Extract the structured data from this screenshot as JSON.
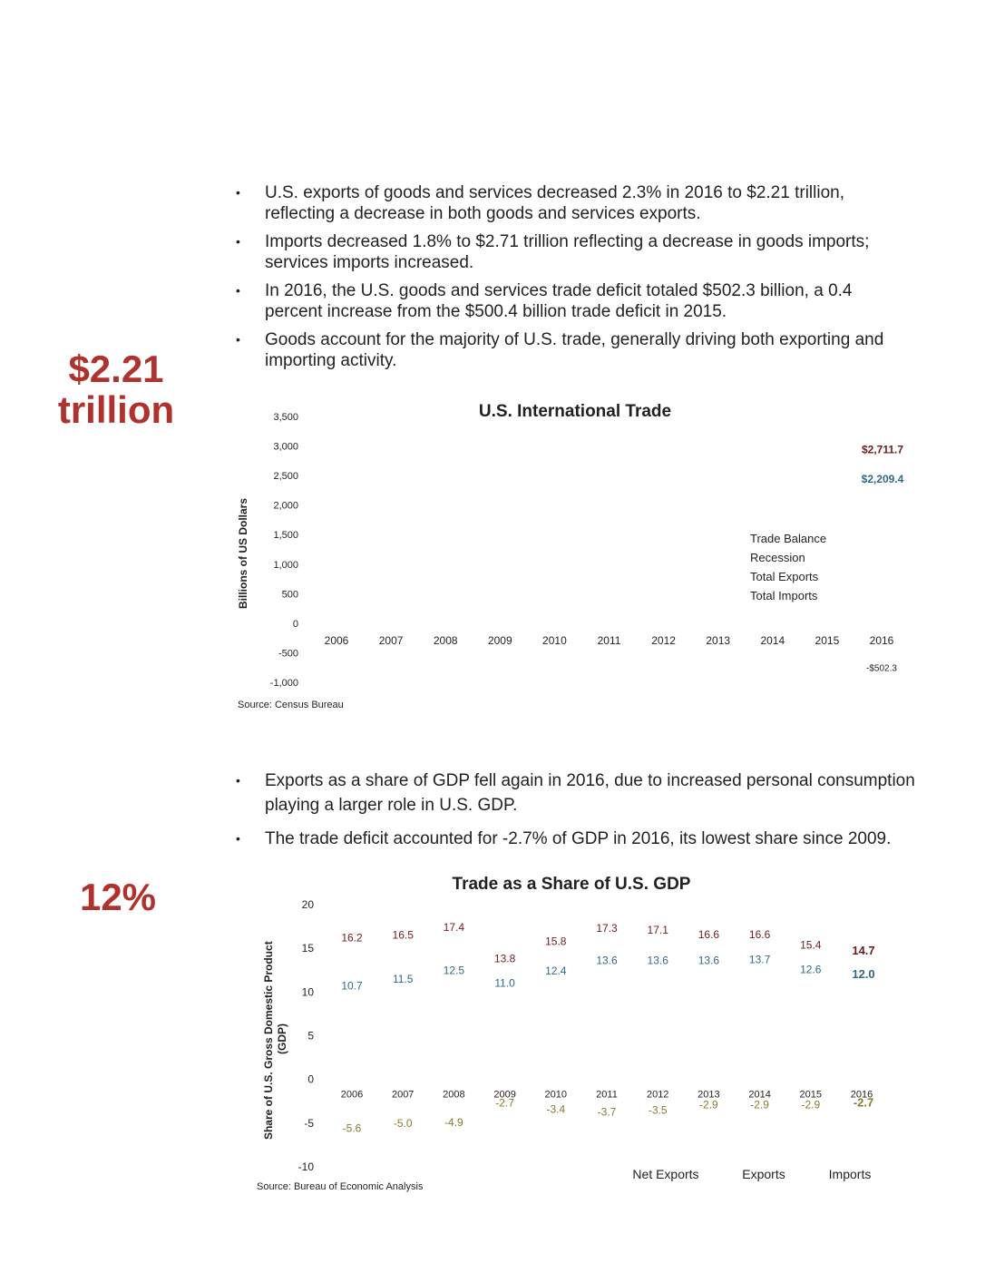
{
  "stats": {
    "first": {
      "line1": "$2.21",
      "line2": "trillion"
    },
    "second": "12%"
  },
  "bullets_top": [
    "U.S. exports of goods and services decreased 2.3%  in 2016 to $2.21 trillion, reflecting a decrease in both goods and services exports.",
    "Imports decreased 1.8% to $2.71 trillion reflecting a decrease in goods imports; services imports increased.",
    "In 2016, the U.S. goods and services trade deficit totaled $502.3 billion, a 0.4 percent increase from the $500.4 billion trade deficit in 2015.",
    "Goods account for the majority of U.S. trade, generally driving both exporting and importing activity."
  ],
  "bullets_bottom": [
    "Exports as a share of GDP fell again in 2016, due to increased personal consumption playing a larger role in U.S. GDP.",
    "The trade deficit accounted for -2.7% of GDP in 2016, its lowest share since 2009."
  ],
  "chart_data": [
    {
      "type": "line",
      "title": "U.S. International Trade",
      "ylabel": "Billions of US Dollars",
      "xlabel": "",
      "ylim": [
        -1000,
        3500
      ],
      "yticks": [
        "3,500",
        "3,000",
        "2,500",
        "2,000",
        "1,500",
        "1,000",
        "500",
        "0",
        "-500",
        "-1,000"
      ],
      "categories": [
        "2006",
        "2007",
        "2008",
        "2009",
        "2010",
        "2011",
        "2012",
        "2013",
        "2014",
        "2015",
        "2016"
      ],
      "legend": [
        "Trade Balance",
        "Recession",
        "Total Exports",
        "Total Imports"
      ],
      "legend_position": "right",
      "annotations": [
        {
          "label": "$2,711.7",
          "x": "2016",
          "y": 2711.7,
          "color": "#6b1d1d"
        },
        {
          "label": "$2,209.4",
          "x": "2016",
          "y": 2209.4,
          "color": "#2f6b84"
        },
        {
          "label": "-$502.3",
          "x": "2016",
          "y": -502.3,
          "color": "#231f20"
        }
      ],
      "source": "Source: Census Bureau"
    },
    {
      "type": "line",
      "title": "Trade as a Share of U.S. GDP",
      "ylabel": "Share of U.S. Gross Domestic Product (GDP)",
      "ylabel_lines": [
        "Share of U.S. Gross Domestic Product",
        "(GDP)"
      ],
      "xlabel": "",
      "ylim": [
        -10,
        20
      ],
      "yticks": [
        "20",
        "15",
        "10",
        "5",
        "0",
        "-5",
        "-10"
      ],
      "categories": [
        "2006",
        "2007",
        "2008",
        "2009",
        "2010",
        "2011",
        "2012",
        "2013",
        "2014",
        "2015",
        "2016"
      ],
      "series": [
        {
          "name": "Imports",
          "color": "#6b1d1d",
          "values": [
            16.2,
            16.5,
            17.4,
            13.8,
            15.8,
            17.3,
            17.1,
            16.6,
            16.6,
            15.4,
            14.7
          ],
          "labels": [
            "16.2",
            "16.5",
            "17.4",
            "13.8",
            "15.8",
            "17.3",
            "17.1",
            "16.6",
            "16.6",
            "15.4",
            "14.7"
          ]
        },
        {
          "name": "Exports",
          "color": "#2f6b84",
          "values": [
            10.7,
            11.5,
            12.5,
            11.0,
            12.4,
            13.6,
            13.6,
            13.6,
            13.7,
            12.6,
            12.0
          ],
          "labels": [
            "10.7",
            "11.5",
            "12.5",
            "11.0",
            "12.4",
            "13.6",
            "13.6",
            "13.6",
            "13.7",
            "12.6",
            "12.0"
          ]
        },
        {
          "name": "Net Exports",
          "color": "#8a7a2e",
          "values": [
            -5.6,
            -5.0,
            -4.9,
            -2.7,
            -3.4,
            -3.7,
            -3.5,
            -2.9,
            -2.9,
            -2.9,
            -2.7
          ],
          "labels": [
            "-5.6",
            "-5.0",
            "-4.9",
            "-2.7",
            "-3.4",
            "-3.7",
            "-3.5",
            "-2.9",
            "-2.9",
            "-2.9",
            "-2.7"
          ]
        }
      ],
      "legend": [
        "Net Exports",
        "Exports",
        "Imports"
      ],
      "legend_position": "bottom-right",
      "source": "Source: Bureau of Economic Analysis"
    }
  ]
}
